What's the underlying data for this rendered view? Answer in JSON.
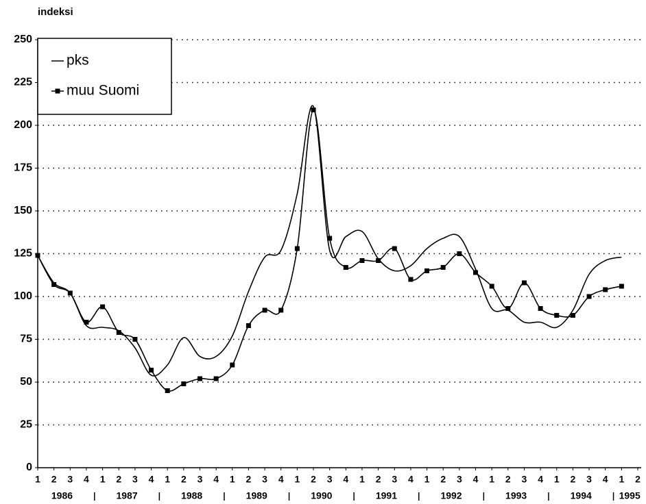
{
  "chart_data": {
    "type": "line",
    "y_label": "indeksi",
    "categories": [
      "1",
      "2",
      "3",
      "4",
      "1",
      "2",
      "3",
      "4",
      "1",
      "2",
      "3",
      "4",
      "1",
      "2",
      "3",
      "4",
      "1",
      "2",
      "3",
      "4",
      "1",
      "2",
      "3",
      "4",
      "1",
      "2",
      "3",
      "4",
      "1",
      "2",
      "3",
      "4",
      "1",
      "2",
      "3",
      "4",
      "1",
      "2"
    ],
    "years": [
      "1986",
      "1987",
      "1988",
      "1989",
      "1990",
      "1991",
      "1992",
      "1993",
      "1994",
      "1995"
    ],
    "series": [
      {
        "name": "pks",
        "color": "#000000",
        "marker": false,
        "values": [
          124,
          108,
          102,
          83,
          82,
          80,
          70,
          54,
          60,
          76,
          65,
          65,
          77,
          103,
          123,
          127,
          160,
          211,
          127,
          135,
          138,
          122,
          115,
          118,
          128,
          134,
          135,
          116,
          93,
          92,
          85,
          85,
          82,
          92,
          113,
          121,
          123,
          null
        ]
      },
      {
        "name": "muu Suomi",
        "color": "#000000",
        "marker": true,
        "values": [
          124,
          107,
          102,
          85,
          94,
          79,
          75,
          57,
          45,
          49,
          52,
          52,
          60,
          83,
          92,
          92,
          128,
          209,
          134,
          117,
          121,
          121,
          128,
          110,
          115,
          117,
          125,
          114,
          106,
          93,
          108,
          93,
          89,
          89,
          100,
          104,
          106,
          null
        ]
      }
    ],
    "ylim": [
      0,
      250
    ],
    "yticks": [
      0,
      25,
      50,
      75,
      100,
      125,
      150,
      175,
      200,
      225,
      250
    ],
    "grid": true,
    "legend": "top-left"
  }
}
